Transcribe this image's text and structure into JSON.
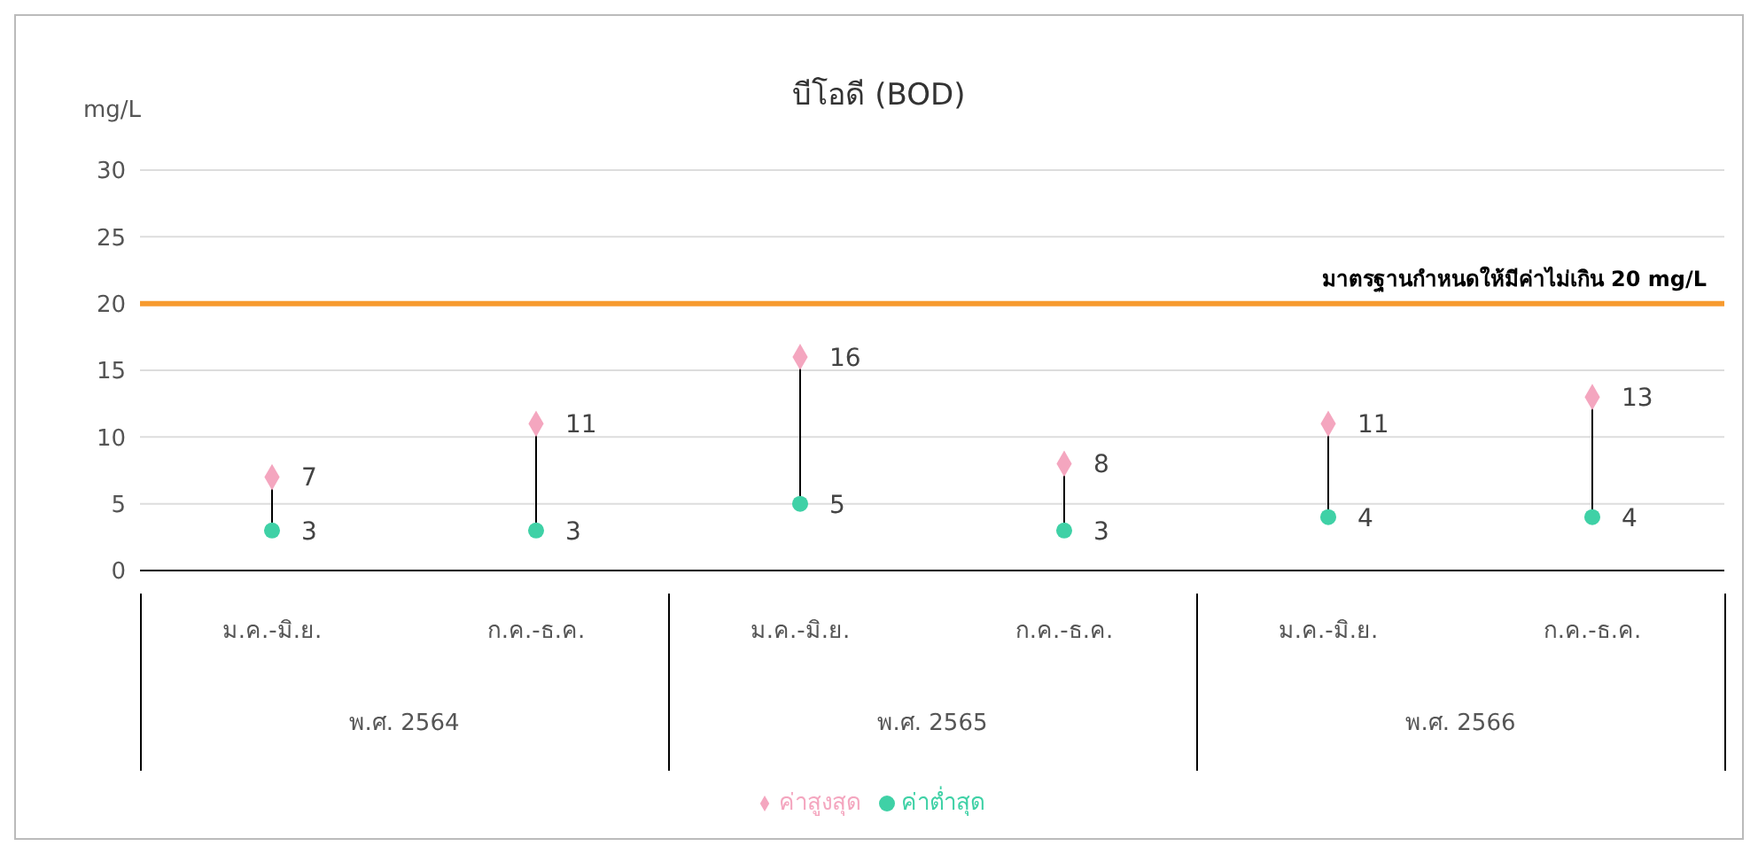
{
  "chart_data": {
    "type": "scatter",
    "title": "บีโอดี (BOD)",
    "ylabel": "mg/L",
    "categories": [
      "ม.ค.-มิ.ย.",
      "ก.ค.-ธ.ค.",
      "ม.ค.-มิ.ย.",
      "ก.ค.-ธ.ค.",
      "ม.ค.-มิ.ย.",
      "ก.ค.-ธ.ค."
    ],
    "annotations": [
      "พ.ศ. 2564",
      "พ.ศ. 2565",
      "พ.ศ. 2566"
    ],
    "series": [
      {
        "name": "ค่าสูงสุด",
        "color": "#f4a6bf",
        "marker": "diamond",
        "values": [
          7,
          11,
          16,
          8,
          11,
          13
        ]
      },
      {
        "name": "ค่าต่ำสุด",
        "color": "#3fd1a6",
        "marker": "circle",
        "values": [
          3,
          3,
          5,
          3,
          4,
          4
        ]
      }
    ],
    "ylim": [
      0,
      30
    ],
    "yticks": [
      0,
      5,
      10,
      15,
      20,
      25,
      30
    ],
    "grid": "y",
    "legend": "bottom",
    "data_labels": true,
    "ref_lines": [
      {
        "axis": "y",
        "value": 20,
        "label": "มาตรฐานกำหนดให้มีค่าไม่เกิน 20 mg/L",
        "color": "#f79a2e"
      }
    ]
  }
}
